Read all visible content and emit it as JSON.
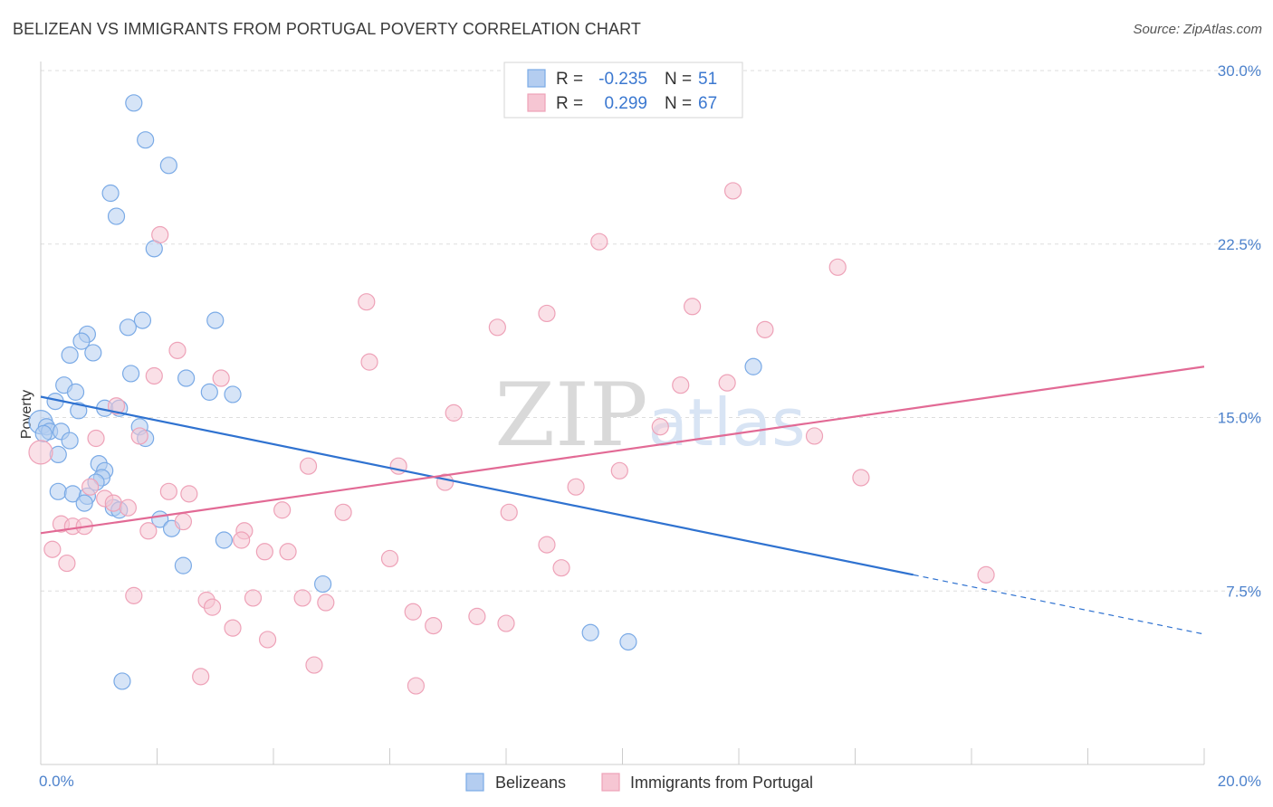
{
  "chart_data": {
    "type": "scatter",
    "title": "BELIZEAN VS IMMIGRANTS FROM PORTUGAL POVERTY CORRELATION CHART",
    "source": "Source: ZipAtlas.com",
    "xlabel": "",
    "ylabel": "Poverty",
    "xlim": [
      0,
      20
    ],
    "ylim": [
      0,
      30
    ],
    "x_tick_labels": [
      "0.0%",
      "20.0%"
    ],
    "y_ticks": [
      7.5,
      15.0,
      22.5,
      30.0
    ],
    "y_tick_labels": [
      "7.5%",
      "15.0%",
      "22.5%",
      "30.0%"
    ],
    "grid": true,
    "legend_position": "bottom",
    "stats_box": {
      "rows": [
        {
          "r_label": "R =",
          "r_value": "-0.235",
          "n_label": "N =",
          "n_value": "51"
        },
        {
          "r_label": "R =",
          "r_value": "0.299",
          "n_label": "N =",
          "n_value": "67"
        }
      ]
    },
    "watermark": "ZIPatlas",
    "series": [
      {
        "name": "Belizeans",
        "color": "#7aaae6",
        "fill": "#b4cdf0",
        "line_color": "#2f72d0",
        "trend": {
          "x0": 0.0,
          "y0": 15.9,
          "x1": 15.0,
          "y1": 8.2,
          "dashed_to_x": 20.0
        },
        "points": [
          {
            "x": 1.6,
            "y": 28.6
          },
          {
            "x": 1.8,
            "y": 27.0
          },
          {
            "x": 2.2,
            "y": 25.9
          },
          {
            "x": 1.2,
            "y": 24.7
          },
          {
            "x": 1.3,
            "y": 23.7
          },
          {
            "x": 1.95,
            "y": 22.3
          },
          {
            "x": 1.75,
            "y": 19.2
          },
          {
            "x": 3.0,
            "y": 19.2
          },
          {
            "x": 1.5,
            "y": 18.9
          },
          {
            "x": 0.8,
            "y": 18.6
          },
          {
            "x": 0.7,
            "y": 18.3
          },
          {
            "x": 0.9,
            "y": 17.8
          },
          {
            "x": 0.5,
            "y": 17.7
          },
          {
            "x": 1.55,
            "y": 16.9
          },
          {
            "x": 2.5,
            "y": 16.7
          },
          {
            "x": 0.4,
            "y": 16.4
          },
          {
            "x": 0.6,
            "y": 16.1
          },
          {
            "x": 2.9,
            "y": 16.1
          },
          {
            "x": 3.3,
            "y": 16.0
          },
          {
            "x": 0.25,
            "y": 15.7
          },
          {
            "x": 0.65,
            "y": 15.3
          },
          {
            "x": 1.1,
            "y": 15.4
          },
          {
            "x": 1.35,
            "y": 15.4
          },
          {
            "x": 0.0,
            "y": 14.8
          },
          {
            "x": 0.1,
            "y": 14.6
          },
          {
            "x": 0.15,
            "y": 14.4
          },
          {
            "x": 0.35,
            "y": 14.4
          },
          {
            "x": 1.7,
            "y": 14.6
          },
          {
            "x": 1.8,
            "y": 14.1
          },
          {
            "x": 0.5,
            "y": 14.0
          },
          {
            "x": 0.3,
            "y": 13.4
          },
          {
            "x": 1.0,
            "y": 13.0
          },
          {
            "x": 1.1,
            "y": 12.7
          },
          {
            "x": 1.05,
            "y": 12.4
          },
          {
            "x": 0.95,
            "y": 12.2
          },
          {
            "x": 0.3,
            "y": 11.8
          },
          {
            "x": 0.55,
            "y": 11.7
          },
          {
            "x": 0.8,
            "y": 11.6
          },
          {
            "x": 0.75,
            "y": 11.3
          },
          {
            "x": 1.25,
            "y": 11.1
          },
          {
            "x": 1.35,
            "y": 11.0
          },
          {
            "x": 2.05,
            "y": 10.6
          },
          {
            "x": 2.25,
            "y": 10.2
          },
          {
            "x": 3.15,
            "y": 9.7
          },
          {
            "x": 2.45,
            "y": 8.6
          },
          {
            "x": 4.85,
            "y": 7.8
          },
          {
            "x": 9.45,
            "y": 5.7
          },
          {
            "x": 10.1,
            "y": 5.3
          },
          {
            "x": 1.4,
            "y": 3.6
          },
          {
            "x": 12.25,
            "y": 17.2
          },
          {
            "x": 0.05,
            "y": 14.3
          }
        ]
      },
      {
        "name": "Immigrants from Portugal",
        "color": "#eea2b8",
        "fill": "#f6c6d3",
        "line_color": "#e26a95",
        "trend": {
          "x0": 0.0,
          "y0": 10.0,
          "x1": 20.0,
          "y1": 17.2
        },
        "points": [
          {
            "x": 11.9,
            "y": 24.8
          },
          {
            "x": 2.05,
            "y": 22.9
          },
          {
            "x": 9.6,
            "y": 22.6
          },
          {
            "x": 13.7,
            "y": 21.5
          },
          {
            "x": 5.6,
            "y": 20.0
          },
          {
            "x": 11.2,
            "y": 19.8
          },
          {
            "x": 8.7,
            "y": 19.5
          },
          {
            "x": 7.85,
            "y": 18.9
          },
          {
            "x": 12.45,
            "y": 18.8
          },
          {
            "x": 2.35,
            "y": 17.9
          },
          {
            "x": 5.65,
            "y": 17.4
          },
          {
            "x": 1.95,
            "y": 16.8
          },
          {
            "x": 3.1,
            "y": 16.7
          },
          {
            "x": 11.8,
            "y": 16.5
          },
          {
            "x": 11.0,
            "y": 16.4
          },
          {
            "x": 1.3,
            "y": 15.5
          },
          {
            "x": 7.1,
            "y": 15.2
          },
          {
            "x": 10.65,
            "y": 14.6
          },
          {
            "x": 1.7,
            "y": 14.2
          },
          {
            "x": 0.95,
            "y": 14.1
          },
          {
            "x": 13.3,
            "y": 14.2
          },
          {
            "x": 0.0,
            "y": 13.5
          },
          {
            "x": 4.6,
            "y": 12.9
          },
          {
            "x": 6.15,
            "y": 12.9
          },
          {
            "x": 9.95,
            "y": 12.7
          },
          {
            "x": 14.1,
            "y": 12.4
          },
          {
            "x": 6.95,
            "y": 12.2
          },
          {
            "x": 9.2,
            "y": 12.0
          },
          {
            "x": 0.85,
            "y": 12.0
          },
          {
            "x": 2.2,
            "y": 11.8
          },
          {
            "x": 2.55,
            "y": 11.7
          },
          {
            "x": 1.1,
            "y": 11.5
          },
          {
            "x": 1.25,
            "y": 11.3
          },
          {
            "x": 1.5,
            "y": 11.1
          },
          {
            "x": 4.15,
            "y": 11.0
          },
          {
            "x": 5.2,
            "y": 10.9
          },
          {
            "x": 8.05,
            "y": 10.9
          },
          {
            "x": 2.45,
            "y": 10.5
          },
          {
            "x": 0.35,
            "y": 10.4
          },
          {
            "x": 0.55,
            "y": 10.3
          },
          {
            "x": 0.75,
            "y": 10.3
          },
          {
            "x": 1.85,
            "y": 10.1
          },
          {
            "x": 3.5,
            "y": 10.1
          },
          {
            "x": 3.45,
            "y": 9.7
          },
          {
            "x": 8.7,
            "y": 9.5
          },
          {
            "x": 0.2,
            "y": 9.3
          },
          {
            "x": 3.85,
            "y": 9.2
          },
          {
            "x": 4.25,
            "y": 9.2
          },
          {
            "x": 6.0,
            "y": 8.9
          },
          {
            "x": 0.45,
            "y": 8.7
          },
          {
            "x": 8.95,
            "y": 8.5
          },
          {
            "x": 16.25,
            "y": 8.2
          },
          {
            "x": 1.6,
            "y": 7.3
          },
          {
            "x": 2.85,
            "y": 7.1
          },
          {
            "x": 3.65,
            "y": 7.2
          },
          {
            "x": 4.5,
            "y": 7.2
          },
          {
            "x": 4.9,
            "y": 7.0
          },
          {
            "x": 2.95,
            "y": 6.8
          },
          {
            "x": 6.4,
            "y": 6.6
          },
          {
            "x": 7.5,
            "y": 6.4
          },
          {
            "x": 6.75,
            "y": 6.0
          },
          {
            "x": 8.0,
            "y": 6.1
          },
          {
            "x": 3.3,
            "y": 5.9
          },
          {
            "x": 3.9,
            "y": 5.4
          },
          {
            "x": 4.7,
            "y": 4.3
          },
          {
            "x": 2.75,
            "y": 3.8
          },
          {
            "x": 6.45,
            "y": 3.4
          }
        ]
      }
    ]
  }
}
